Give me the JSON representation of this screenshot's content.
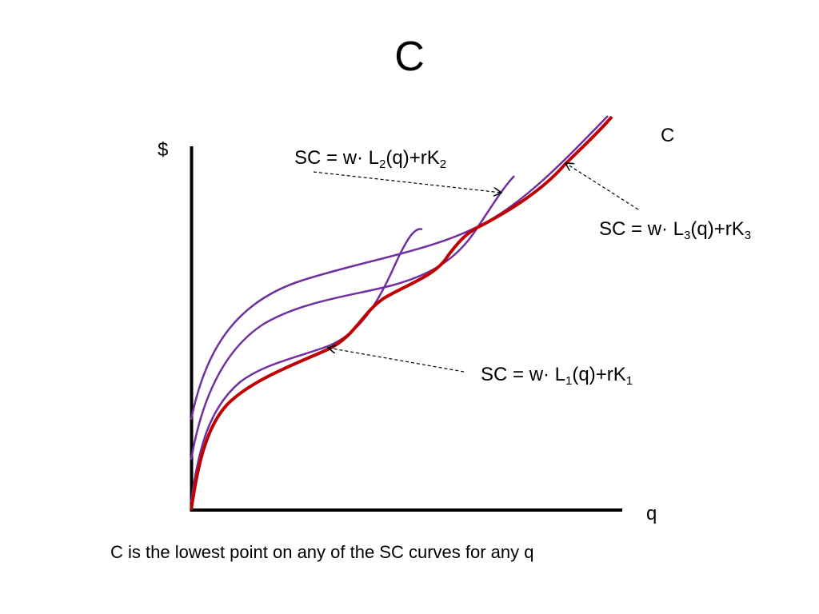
{
  "title": "C",
  "axes": {
    "y_label": "$",
    "x_label": "q"
  },
  "envelope_label": "C",
  "sc_labels": [
    {
      "lhs": "SC = w· L",
      "sub1": "2",
      "mid": "(q)+rK",
      "sub2": "2"
    },
    {
      "lhs": "SC = w· L",
      "sub1": "3",
      "mid": "(q)+rK",
      "sub2": "3"
    },
    {
      "lhs": "SC = w· L",
      "sub1": "1",
      "mid": "(q)+rK",
      "sub2": "1"
    }
  ],
  "caption": "C is the lowest point on any of the SC curves for any q",
  "colors": {
    "short_run_curves": "#7030a0",
    "envelope_curve": "#c00000",
    "axes": "#000000",
    "arrows": "#000000"
  }
}
